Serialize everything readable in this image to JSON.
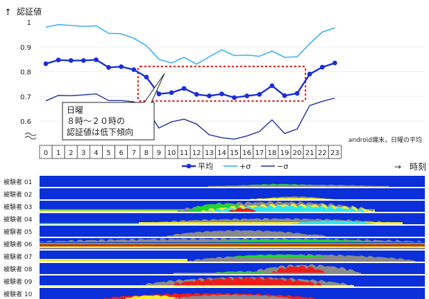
{
  "chart_data": [
    {
      "type": "line",
      "ylabel": "認証値",
      "y_axis_arrow": "↑",
      "xlabel": "時刻",
      "x_axis_arrow": "→",
      "ylim": [
        0.55,
        1.0
      ],
      "yticks": [
        "1",
        "0.9",
        "0.8",
        "0.7",
        "0.6"
      ],
      "x": [
        0,
        1,
        2,
        3,
        4,
        5,
        6,
        7,
        8,
        9,
        10,
        11,
        12,
        13,
        14,
        15,
        16,
        17,
        18,
        19,
        20,
        21,
        22,
        23
      ],
      "series": [
        {
          "name": "平均",
          "color": "#1a2fd6",
          "values": [
            0.832,
            0.847,
            0.845,
            0.845,
            0.848,
            0.817,
            0.82,
            0.808,
            0.778,
            0.71,
            0.715,
            0.732,
            0.708,
            0.702,
            0.71,
            0.695,
            0.702,
            0.708,
            0.743,
            0.703,
            0.712,
            0.79,
            0.818,
            0.835
          ]
        },
        {
          "name": "+σ",
          "color": "#22aaf0",
          "values": [
            0.98,
            0.99,
            0.987,
            0.983,
            0.985,
            0.955,
            0.953,
            0.935,
            0.905,
            0.85,
            0.835,
            0.858,
            0.83,
            0.86,
            0.888,
            0.865,
            0.867,
            0.862,
            0.883,
            0.858,
            0.86,
            0.913,
            0.96,
            0.977
          ]
        },
        {
          "name": "−σ",
          "color": "#1c2fa0",
          "values": [
            0.682,
            0.704,
            0.703,
            0.706,
            0.71,
            0.683,
            0.683,
            0.678,
            0.651,
            0.572,
            0.597,
            0.608,
            0.588,
            0.545,
            0.533,
            0.527,
            0.54,
            0.558,
            0.605,
            0.55,
            0.568,
            0.663,
            0.68,
            0.693
          ]
        }
      ],
      "annotation": {
        "lines": [
          "日曜",
          "８時～２０時の",
          "認証値は低下傾向"
        ],
        "highlight_hours": [
          8,
          20
        ]
      },
      "note": "android端末，日曜の平均",
      "legend": "bottom-right"
    },
    {
      "type": "heatmap",
      "description_rows": [
        {
          "label": "被験者 01"
        },
        {
          "label": "被験者 02"
        },
        {
          "label": "被験者 03"
        },
        {
          "label": "被験者 04"
        },
        {
          "label": "被験者 05"
        },
        {
          "label": "被験者 06"
        },
        {
          "label": "被験者 07"
        },
        {
          "label": "被験者 08"
        },
        {
          "label": "被験者 09"
        },
        {
          "label": "被験者 10"
        }
      ],
      "colors": {
        "background": "#0b2fd8",
        "gray": "#8a8a8a",
        "yellow": "#f5ef2a",
        "green": "#22d430",
        "red": "#ee1b1b",
        "cyan": "#2ee6f0"
      }
    }
  ]
}
